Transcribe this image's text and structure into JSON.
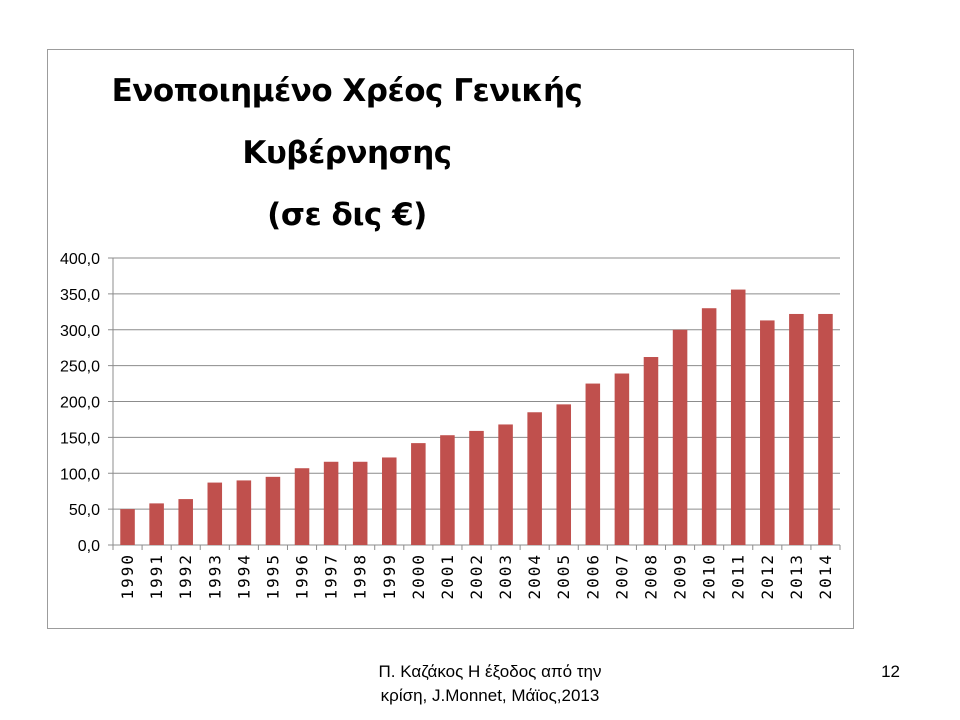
{
  "slide": {
    "footer_line1": "Π. Καζάκος Η έξοδος από την",
    "footer_line2": "κρίση, J.Monnet, Μάϊος,2013",
    "page_number": "12"
  },
  "chart_data": {
    "type": "bar",
    "title_line1": "Ενοποιημένο Χρέος Γενικής Κυβέρνησης",
    "title_line2": "(σε δις €)",
    "xlabel": "",
    "ylabel": "",
    "ylim": [
      0,
      400
    ],
    "y_ticks": [
      "0,0",
      "50,0",
      "100,0",
      "150,0",
      "200,0",
      "250,0",
      "300,0",
      "350,0",
      "400,0"
    ],
    "grid": true,
    "bar_color": "#c0504d",
    "categories": [
      "1990",
      "1991",
      "1992",
      "1993",
      "1994",
      "1995",
      "1996",
      "1997",
      "1998",
      "1999",
      "2000",
      "2001",
      "2002",
      "2003",
      "2004",
      "2005",
      "2006",
      "2007",
      "2008",
      "2009",
      "2010",
      "2011",
      "2012",
      "2013",
      "2014"
    ],
    "values": [
      50,
      58,
      64,
      87,
      90,
      95,
      107,
      116,
      116,
      122,
      142,
      153,
      159,
      168,
      185,
      196,
      225,
      239,
      262,
      300,
      330,
      356,
      313,
      322,
      322
    ]
  }
}
